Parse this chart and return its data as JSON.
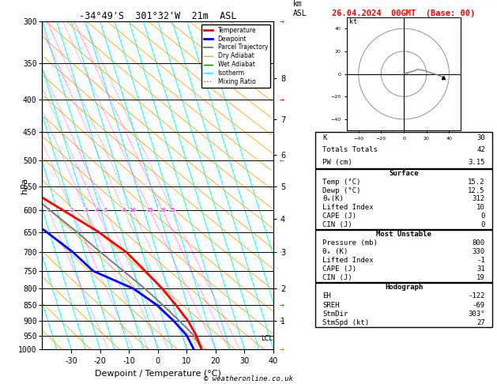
{
  "title_left": "-34°49'S  301°32'W  21m  ASL",
  "title_right": "26.04.2024  00GMT  (Base: 00)",
  "xlabel": "Dewpoint / Temperature (°C)",
  "ylabel_left": "hPa",
  "pressure_levels": [
    300,
    350,
    400,
    450,
    500,
    550,
    600,
    650,
    700,
    750,
    800,
    850,
    900,
    950,
    1000
  ],
  "pressure_labels": [
    "300",
    "350",
    "400",
    "450",
    "500",
    "550",
    "600",
    "650",
    "700",
    "750",
    "800",
    "850",
    "900",
    "950",
    "1000"
  ],
  "temp_xlim": [
    -40,
    40
  ],
  "temp_xticks": [
    -30,
    -20,
    -10,
    0,
    10,
    20,
    30,
    40
  ],
  "mixing_ratio_values": [
    1,
    2,
    3,
    4,
    5,
    8,
    10,
    15,
    20,
    25
  ],
  "km_labels": [
    1,
    2,
    3,
    4,
    5,
    6,
    7,
    8
  ],
  "km_pressures": [
    900,
    800,
    700,
    620,
    550,
    490,
    430,
    370
  ],
  "lcl_pressure": 960,
  "bg_color": "#ffffff",
  "skew": 45,
  "temp_profile_T": [
    15.2,
    14.8,
    13.5,
    11.0,
    8.0,
    4.0,
    -0.5,
    -8.0,
    -18.0,
    -29.0,
    -40.0,
    -50.0,
    -56.0,
    -57.0,
    -55.0
  ],
  "temp_profile_P": [
    1000,
    950,
    900,
    850,
    800,
    750,
    700,
    650,
    600,
    550,
    500,
    450,
    400,
    350,
    300
  ],
  "dewp_profile_T": [
    12.5,
    11.5,
    8.5,
    4.5,
    -2.0,
    -14.0,
    -19.0,
    -26.0,
    -35.0,
    -44.0,
    -52.0,
    -58.0,
    -58.0,
    -58.0,
    -57.0
  ],
  "dewp_profile_P": [
    1000,
    950,
    900,
    850,
    800,
    750,
    700,
    650,
    600,
    550,
    500,
    450,
    400,
    350,
    300
  ],
  "parcel_profile_T": [
    15.2,
    14.0,
    10.5,
    6.5,
    2.0,
    -3.5,
    -9.5,
    -15.5,
    -22.5,
    -30.0,
    -38.0,
    -46.0,
    -54.0,
    -57.0,
    -56.0
  ],
  "parcel_profile_P": [
    1000,
    950,
    900,
    850,
    800,
    750,
    700,
    650,
    600,
    550,
    500,
    450,
    400,
    350,
    300
  ],
  "legend_items": [
    {
      "label": "Temperature",
      "color": "red",
      "lw": 2,
      "ls": "-"
    },
    {
      "label": "Dewpoint",
      "color": "blue",
      "lw": 2,
      "ls": "-"
    },
    {
      "label": "Parcel Trajectory",
      "color": "gray",
      "lw": 1.5,
      "ls": "-"
    },
    {
      "label": "Dry Adiabat",
      "color": "orange",
      "lw": 1,
      "ls": "-"
    },
    {
      "label": "Wet Adiabat",
      "color": "green",
      "lw": 1,
      "ls": "-"
    },
    {
      "label": "Isotherm",
      "color": "cyan",
      "lw": 1,
      "ls": "-"
    },
    {
      "label": "Mixing Ratio",
      "color": "magenta",
      "lw": 1,
      "ls": ":",
      "dotted": true
    }
  ],
  "stats_K": 30,
  "stats_TT": 42,
  "stats_PW": "3.15",
  "surf_temp": "15.2",
  "surf_dewp": "12.5",
  "surf_theta_e": 312,
  "surf_li": 10,
  "surf_cape": 0,
  "surf_cin": 0,
  "mu_pressure": 800,
  "mu_theta_e": 330,
  "mu_li": -1,
  "mu_cape": 31,
  "mu_cin": 19,
  "hodo_EH": -122,
  "hodo_SREH": -69,
  "hodo_StmDir": "303°",
  "hodo_StmSpd": 27,
  "footer": "© weatheronline.co.uk"
}
